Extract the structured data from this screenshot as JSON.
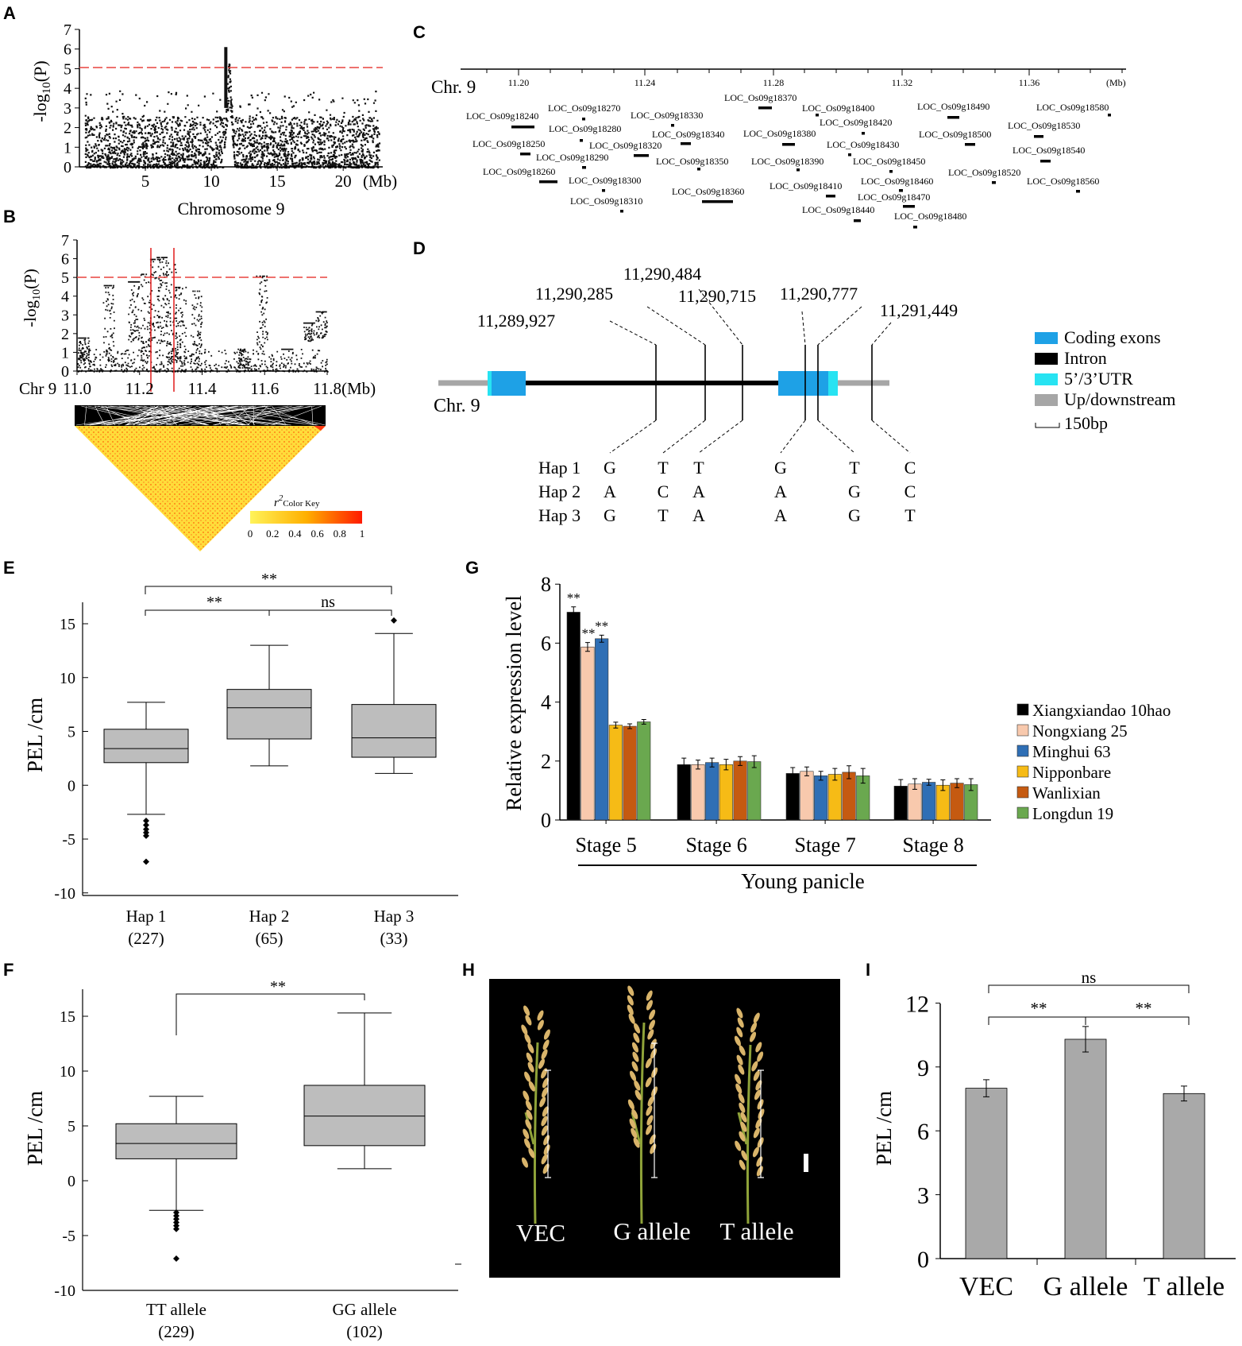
{
  "panel_labels": {
    "A": "A",
    "B": "B",
    "C": "C",
    "D": "D",
    "E": "E",
    "F": "F",
    "G": "G",
    "H": "H",
    "I": "I"
  },
  "colors": {
    "threshold": "#e8433f",
    "sigline": "#e01b1b",
    "box": "#bdbdbd",
    "coding": "#1ea1e6",
    "utr": "#27e3f2",
    "updown": "#a6a6a6",
    "bar_gray": "#a9a9a9",
    "ld_low": "#ffeb3b",
    "ld_high": "#ff1a00",
    "g1": "#000000",
    "g2": "#f8c9ad",
    "g3": "#2f6fb5",
    "g4": "#f6bb16",
    "g5": "#c55a11",
    "g6": "#6aa84f"
  },
  "panelA": {
    "ylabel": "-log10(P)",
    "xlabel": "Chromosome 9",
    "xunit": "(Mb)",
    "yticks": [
      "0",
      "1",
      "2",
      "3",
      "4",
      "5",
      "6",
      "7"
    ],
    "xticks": [
      "5",
      "10",
      "15",
      "20"
    ],
    "threshold": 5,
    "chart_data": {
      "type": "scatter",
      "title": "",
      "xlabel": "Chromosome 9",
      "ylabel": "-log10(P)",
      "xlim": [
        0,
        23
      ],
      "ylim": [
        0,
        7
      ],
      "threshold": 5,
      "peak_position_mb": 11.3,
      "peak_value": 6.1
    }
  },
  "panelB": {
    "ylabel": "-log10(P)",
    "xlabel_prefix": "Chr 9",
    "xunit": "(Mb)",
    "yticks": [
      "0",
      "1",
      "2",
      "3",
      "4",
      "5",
      "6",
      "7"
    ],
    "xticks": [
      "11.0",
      "11.2",
      "11.4",
      "11.6",
      "11.8"
    ],
    "ld_key_title": "r",
    "ld_key_sup": "2",
    "ld_key_sub": "Color Key",
    "ld_ticks": [
      "0",
      "0.2",
      "0.4",
      "0.6",
      "0.8",
      "1"
    ],
    "chart_data": {
      "type": "scatter",
      "title": "",
      "xlim": [
        11.0,
        11.8
      ],
      "ylim": [
        0,
        7
      ],
      "threshold": 5,
      "region_lines_mb": [
        11.24,
        11.31
      ]
    }
  },
  "panelC": {
    "chrom": "Chr. 9",
    "unit": "(Mb)",
    "ticks": [
      "11.20",
      "11.24",
      "11.28",
      "11.32",
      "11.36"
    ],
    "genes": [
      "LOC_Os09g18240",
      "LOC_Os09g18250",
      "LOC_Os09g18260",
      "LOC_Os09g18270",
      "LOC_Os09g18280",
      "LOC_Os09g18290",
      "LOC_Os09g18300",
      "LOC_Os09g18310",
      "LOC_Os09g18320",
      "LOC_Os09g18330",
      "LOC_Os09g18340",
      "LOC_Os09g18350",
      "LOC_Os09g18360",
      "LOC_Os09g18370",
      "LOC_Os09g18380",
      "LOC_Os09g18390",
      "LOC_Os09g18400",
      "LOC_Os09g18410",
      "LOC_Os09g18420",
      "LOC_Os09g18430",
      "LOC_Os09g18440",
      "LOC_Os09g18450",
      "LOC_Os09g18460",
      "LOC_Os09g18470",
      "LOC_Os09g18480",
      "LOC_Os09g18490",
      "LOC_Os09g18500",
      "LOC_Os09g18520",
      "LOC_Os09g18530",
      "LOC_Os09g18540",
      "LOC_Os09g18560",
      "LOC_Os09g18580"
    ]
  },
  "panelD": {
    "chrom": "Chr. 9",
    "positions": [
      "11,289,927",
      "11,290,285",
      "11,290,484",
      "11,290,715",
      "11,290,777",
      "11,291,449"
    ],
    "legend": [
      "Coding exons",
      "Intron",
      "5’/3’UTR",
      "Up/downstream",
      "150bp"
    ],
    "haplotypes": [
      {
        "name": "Hap 1",
        "alleles": [
          "G",
          "T",
          "T",
          "G",
          "T",
          "C"
        ]
      },
      {
        "name": "Hap 2",
        "alleles": [
          "A",
          "C",
          "A",
          "A",
          "G",
          "C"
        ]
      },
      {
        "name": "Hap 3",
        "alleles": [
          "G",
          "T",
          "A",
          "A",
          "G",
          "T"
        ]
      }
    ]
  },
  "panelE": {
    "ylabel": "PEL /cm",
    "yticks": [
      "15",
      "10",
      "5",
      "0",
      "-5",
      "-10"
    ],
    "sig": [
      "**",
      "**",
      "ns"
    ],
    "chart_data": {
      "type": "box",
      "ylim": [
        -10,
        17
      ],
      "groups": [
        {
          "name": "Hap 1",
          "n": "(227)",
          "min": -2.7,
          "q1": 2.1,
          "median": 3.4,
          "q3": 5.2,
          "max": 7.7,
          "outliers": [
            -3.3,
            -3.7,
            -4.1,
            -4.4,
            -4.7,
            -7.1
          ]
        },
        {
          "name": "Hap 2",
          "n": "(65)",
          "min": 1.8,
          "q1": 4.3,
          "median": 7.2,
          "q3": 8.9,
          "max": 13.0,
          "outliers": []
        },
        {
          "name": "Hap 3",
          "n": "(33)",
          "min": 1.1,
          "q1": 2.6,
          "median": 4.4,
          "q3": 7.5,
          "max": 14.1,
          "outliers": [
            15.3
          ]
        }
      ]
    }
  },
  "panelF": {
    "ylabel": "PEL /cm",
    "yticks": [
      "15",
      "10",
      "5",
      "0",
      "-5",
      "-10"
    ],
    "sig": "**",
    "chart_data": {
      "type": "box",
      "ylim": [
        -10,
        17
      ],
      "groups": [
        {
          "name": "TT allele",
          "n": "(229)",
          "min": -2.7,
          "q1": 2.0,
          "median": 3.4,
          "q3": 5.2,
          "max": 7.7,
          "outliers": [
            -2.9,
            -3.2,
            -3.5,
            -3.8,
            -4.1,
            -4.4,
            -7.1
          ]
        },
        {
          "name": "GG allele",
          "n": "(102)",
          "min": 1.1,
          "q1": 3.2,
          "median": 5.9,
          "q3": 8.7,
          "max": 15.3,
          "outliers": []
        }
      ]
    }
  },
  "panelG": {
    "ylabel": "Relative expression level",
    "group_label": "Young panicle",
    "yticks": [
      "0",
      "2",
      "4",
      "6",
      "8"
    ],
    "sig": "**",
    "chart_data": {
      "type": "bar",
      "ylim": [
        0,
        8
      ],
      "categories": [
        "Stage 5",
        "Stage 6",
        "Stage 7",
        "Stage 8"
      ],
      "series": [
        {
          "name": "Xiangxiandao 10hao",
          "values": [
            7.05,
            1.88,
            1.58,
            1.15
          ],
          "err": [
            0.18,
            0.22,
            0.2,
            0.22
          ]
        },
        {
          "name": "Nongxiang 25",
          "values": [
            5.87,
            1.88,
            1.65,
            1.22
          ],
          "err": [
            0.15,
            0.15,
            0.15,
            0.18
          ]
        },
        {
          "name": "Minghui 63",
          "values": [
            6.15,
            1.95,
            1.5,
            1.28
          ],
          "err": [
            0.12,
            0.15,
            0.15,
            0.1
          ]
        },
        {
          "name": "Nipponbare",
          "values": [
            3.22,
            1.88,
            1.55,
            1.18
          ],
          "err": [
            0.1,
            0.18,
            0.2,
            0.18
          ]
        },
        {
          "name": "Wanlixian",
          "values": [
            3.18,
            2.0,
            1.62,
            1.25
          ],
          "err": [
            0.08,
            0.15,
            0.22,
            0.15
          ]
        },
        {
          "name": "Longdun 19",
          "values": [
            3.33,
            1.98,
            1.5,
            1.2
          ],
          "err": [
            0.08,
            0.2,
            0.25,
            0.2
          ]
        }
      ]
    }
  },
  "panelH": {
    "labels": [
      "VEC",
      "G allele",
      "T allele"
    ]
  },
  "panelI": {
    "ylabel": "PEL /cm",
    "yticks": [
      "0",
      "3",
      "6",
      "9",
      "12"
    ],
    "sig": [
      "ns",
      "**",
      "**"
    ],
    "chart_data": {
      "type": "bar",
      "ylim": [
        0,
        12
      ],
      "categories": [
        "VEC",
        "G allele",
        "T allele"
      ],
      "values": [
        8.0,
        10.3,
        7.75
      ],
      "err": [
        0.4,
        0.6,
        0.35
      ]
    }
  }
}
